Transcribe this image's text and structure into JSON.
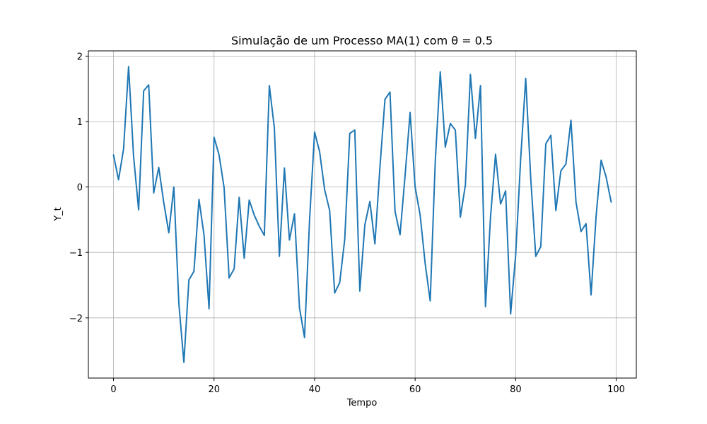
{
  "chart_data": {
    "type": "line",
    "title": "Simulação de um Processo MA(1) com θ = 0.5",
    "xlabel": "Tempo",
    "ylabel": "Y_t",
    "xlim": [
      -5,
      104
    ],
    "ylim": [
      -2.92,
      2.08
    ],
    "grid": true,
    "x_ticks": [
      0,
      20,
      40,
      60,
      80,
      100
    ],
    "x_tick_labels": [
      "0",
      "20",
      "40",
      "60",
      "80",
      "100"
    ],
    "y_ticks": [
      2,
      1,
      0,
      -1,
      -2
    ],
    "y_tick_labels": [
      "2",
      "1",
      "0",
      "−1",
      "−2"
    ],
    "colors": {
      "line": "#1f77b4",
      "grid": "#b0b0b0",
      "axes": "#000000"
    },
    "series": [
      {
        "x": [
          0,
          1,
          2,
          3,
          4,
          5,
          6,
          7,
          8,
          9,
          10,
          11,
          12,
          13,
          14,
          15,
          16,
          17,
          18,
          19,
          20,
          21,
          22,
          23,
          24,
          25,
          26,
          27,
          28,
          29,
          30,
          31,
          32,
          33,
          34,
          35,
          36,
          37,
          38,
          39,
          40,
          41,
          42,
          43,
          44,
          45,
          46,
          47,
          48,
          49,
          50,
          51,
          52,
          53,
          54,
          55,
          56,
          57,
          58,
          59,
          60,
          61,
          62,
          63,
          64,
          65,
          66,
          67,
          68,
          69,
          70,
          71,
          72,
          73,
          74,
          75,
          76,
          77,
          78,
          79,
          80,
          81,
          82,
          83,
          84,
          85,
          86,
          87,
          88,
          89,
          90,
          91,
          92,
          93,
          94,
          95,
          96,
          97,
          98,
          99
        ],
        "values": [
          0.49,
          0.11,
          0.58,
          1.84,
          0.46,
          -0.35,
          1.47,
          1.56,
          -0.09,
          0.3,
          -0.24,
          -0.7,
          0.0,
          -1.78,
          -2.68,
          -1.42,
          -1.29,
          -0.19,
          -0.73,
          -1.86,
          0.76,
          0.49,
          -0.01,
          -1.39,
          -1.25,
          -0.16,
          -1.09,
          -0.2,
          -0.43,
          -0.6,
          -0.74,
          1.55,
          0.9,
          -1.06,
          0.29,
          -0.81,
          -0.41,
          -1.85,
          -2.3,
          -0.51,
          0.84,
          0.54,
          -0.04,
          -0.36,
          -1.62,
          -1.46,
          -0.8,
          0.82,
          0.87,
          -1.59,
          -0.58,
          -0.22,
          -0.87,
          0.3,
          1.34,
          1.45,
          -0.37,
          -0.73,
          0.17,
          1.14,
          0.0,
          -0.43,
          -1.17,
          -1.74,
          0.38,
          1.76,
          0.61,
          0.97,
          0.87,
          -0.46,
          0.03,
          1.72,
          0.74,
          1.55,
          -1.83,
          -0.46,
          0.5,
          -0.26,
          -0.06,
          -1.94,
          -1.04,
          0.43,
          1.66,
          0.13,
          -1.06,
          -0.91,
          0.66,
          0.79,
          -0.36,
          0.25,
          0.35,
          1.02,
          -0.23,
          -0.68,
          -0.56,
          -1.65,
          -0.45,
          0.41,
          0.15,
          -0.23
        ]
      }
    ]
  }
}
